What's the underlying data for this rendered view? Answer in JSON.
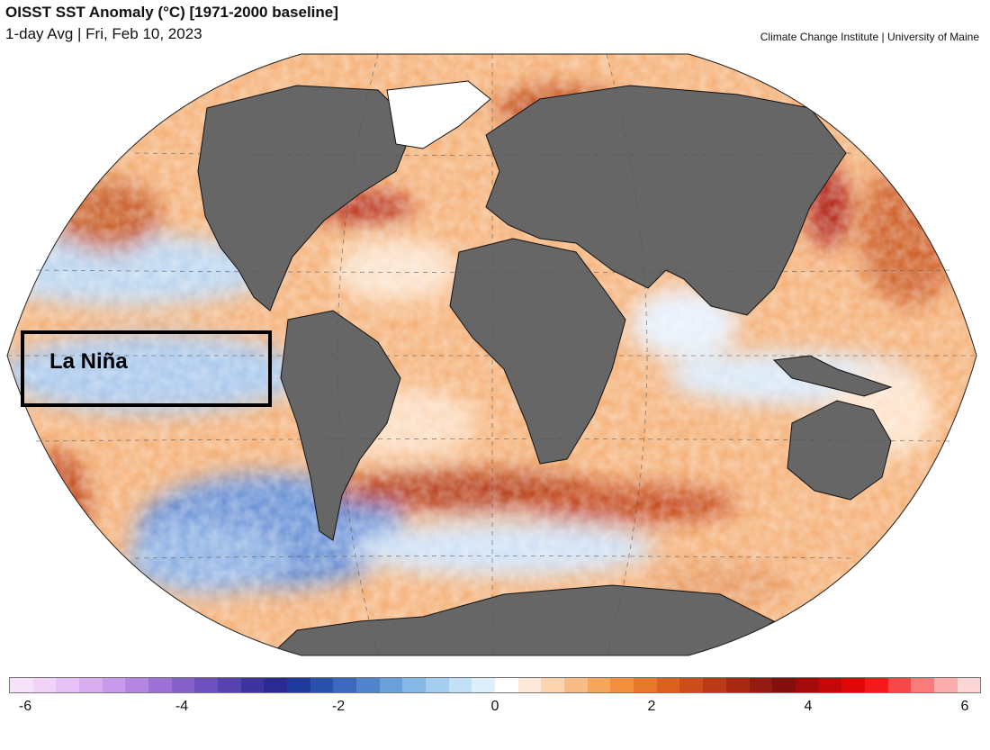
{
  "header": {
    "title": "OISST SST Anomaly (°C) [1971-2000 baseline]",
    "subtitle": "1-day Avg | Fri, Feb 10, 2023",
    "credit": "Climate Change Institute | University of Maine"
  },
  "map": {
    "projection": "robinson",
    "callout": "La Niña",
    "land_color": "#666666",
    "ice_color": "#ffffff"
  },
  "colorbar": {
    "min": -6,
    "max": 6,
    "ticks": [
      "-6",
      "-4",
      "-2",
      "0",
      "2",
      "4",
      "6"
    ],
    "colors": [
      "#f7e3f9",
      "#f0d3f7",
      "#e6c1f5",
      "#d9aef1",
      "#c99aec",
      "#b585e2",
      "#9d70d6",
      "#8560c9",
      "#6d50bb",
      "#5743ad",
      "#3f349e",
      "#2a2a90",
      "#1f3a9a",
      "#2a52ab",
      "#3b6abd",
      "#5084cc",
      "#69a0da",
      "#86b8e6",
      "#a4cdef",
      "#c2e0f6",
      "#dfeefb",
      "#ffffff",
      "#fde9d8",
      "#fbd3ae",
      "#f9bc84",
      "#f6a55c",
      "#f0903e",
      "#e8782c",
      "#dc6121",
      "#cd4c1a",
      "#bb3915",
      "#a82812",
      "#951a10",
      "#82100e",
      "#a40a0a",
      "#c20808",
      "#de0808",
      "#f31a1a",
      "#f84848",
      "#fb7a7a",
      "#fdacac",
      "#fed6d6"
    ]
  }
}
